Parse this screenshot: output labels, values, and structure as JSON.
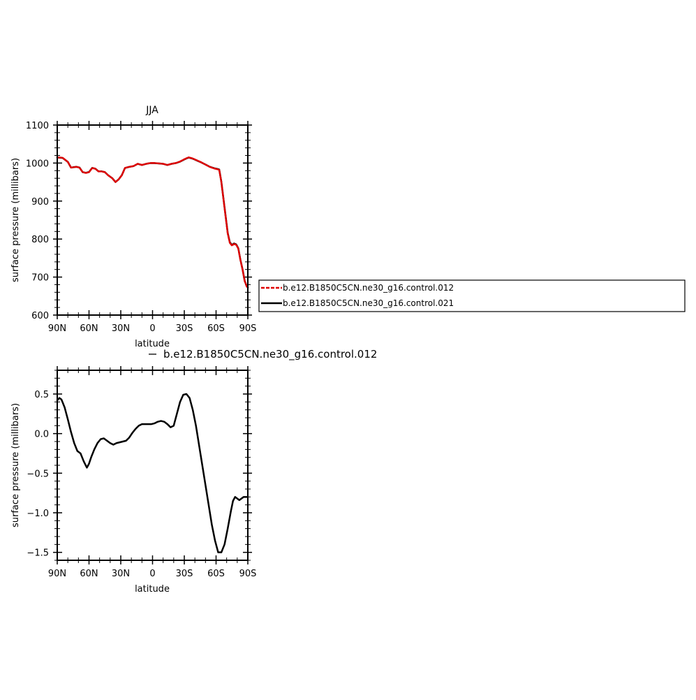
{
  "chart_data": [
    {
      "type": "line",
      "title": "JJA",
      "xlabel": "latitude",
      "ylabel": "surface pressure (millibars)",
      "x_tick_labels": [
        "90N",
        "60N",
        "30N",
        "0",
        "30S",
        "60S",
        "90S"
      ],
      "y_tick_labels": [
        "600",
        "700",
        "800",
        "900",
        "1000",
        "1100"
      ],
      "xlim": [
        90,
        -90
      ],
      "ylim": [
        600,
        1100
      ],
      "series": [
        {
          "name": "b.e12.B1850C5CN.ne30_g16.control.012",
          "color": "#e00000",
          "style": "dashed",
          "x": [
            90,
            85,
            80,
            77,
            72,
            69,
            66,
            63,
            60,
            57,
            54,
            51,
            48,
            45,
            42,
            38,
            35,
            32,
            29,
            26,
            22,
            18,
            14,
            10,
            6,
            2,
            -2,
            -6,
            -10,
            -14,
            -18,
            -22,
            -26,
            -30,
            -34,
            -38,
            -42,
            -46,
            -50,
            -54,
            -58,
            -61,
            -63,
            -65,
            -67,
            -69,
            -71,
            -73,
            -75,
            -77,
            -79,
            -81,
            -83,
            -85,
            -87,
            -89,
            -90
          ],
          "values": [
            1015,
            1014,
            1003,
            988,
            990,
            988,
            976,
            974,
            976,
            987,
            985,
            978,
            978,
            976,
            968,
            960,
            950,
            957,
            968,
            987,
            990,
            992,
            998,
            995,
            998,
            1000,
            1000,
            999,
            998,
            995,
            998,
            1000,
            1004,
            1010,
            1015,
            1012,
            1007,
            1002,
            996,
            990,
            986,
            984,
            982,
            950,
            905,
            860,
            815,
            790,
            783,
            787,
            785,
            775,
            745,
            720,
            690,
            675,
            672
          ]
        },
        {
          "name": "b.e12.B1850C5CN.ne30_g16.control.021",
          "color": "#000000",
          "style": "solid",
          "x": [
            90,
            85,
            80,
            77,
            72,
            69,
            66,
            63,
            60,
            57,
            54,
            51,
            48,
            45,
            42,
            38,
            35,
            32,
            29,
            26,
            22,
            18,
            14,
            10,
            6,
            2,
            -2,
            -6,
            -10,
            -14,
            -18,
            -22,
            -26,
            -30,
            -34,
            -38,
            -42,
            -46,
            -50,
            -54,
            -58,
            -61,
            -63,
            -65,
            -67,
            -69,
            -71,
            -73,
            -75,
            -77,
            -79,
            -81,
            -83,
            -85,
            -87,
            -89,
            -90
          ],
          "values": [
            1014.6,
            1013.6,
            1003.0,
            988.1,
            990.2,
            988.2,
            976.2,
            974.4,
            976.4,
            987.2,
            985.1,
            978.1,
            978.1,
            976.1,
            968.1,
            960.1,
            950.1,
            957.1,
            968.1,
            987.1,
            989.9,
            991.9,
            997.9,
            994.9,
            997.9,
            999.9,
            999.9,
            998.9,
            997.9,
            994.9,
            997.9,
            999.9,
            1003.6,
            1009.5,
            1014.6,
            1011.5,
            1006.6,
            1001.7,
            996.2,
            990.3,
            986.6,
            984.7,
            982.9,
            950.9,
            906.1,
            861.2,
            816.5,
            791.5,
            784.5,
            788.4,
            786.1,
            775.9,
            745.6,
            720.6,
            690.7,
            675.8,
            672.8
          ]
        }
      ],
      "legend": "right"
    },
    {
      "type": "line",
      "title": "b.e12.B1850C5CN.ne30_g16.control.012",
      "xlabel": "latitude",
      "ylabel": "surface pressure (millibars)",
      "x_tick_labels": [
        "90N",
        "60N",
        "30N",
        "0",
        "30S",
        "60S",
        "90S"
      ],
      "y_tick_labels": [
        "0.5",
        "0.0",
        "−0.5",
        "−1.0",
        "−1.5"
      ],
      "xlim": [
        90,
        -90
      ],
      "ylim": [
        -1.6,
        0.8
      ],
      "series": [
        {
          "color": "#000000",
          "style": "solid",
          "x": [
            90,
            88,
            86,
            83,
            80,
            77,
            74,
            71,
            68,
            65,
            62,
            60,
            58,
            55,
            52,
            49,
            46,
            43,
            40,
            37,
            34,
            31,
            28,
            25,
            22,
            19,
            16,
            13,
            10,
            7,
            4,
            1,
            -2,
            -5,
            -8,
            -11,
            -14,
            -17,
            -20,
            -23,
            -26,
            -29,
            -32,
            -35,
            -38,
            -41,
            -44,
            -47,
            -50,
            -53,
            -56,
            -59,
            -62,
            -65,
            -68,
            -71,
            -74,
            -76,
            -78,
            -80,
            -82,
            -84,
            -86,
            -88,
            -90
          ],
          "values": [
            0.42,
            0.45,
            0.43,
            0.33,
            0.18,
            0.02,
            -0.12,
            -0.22,
            -0.25,
            -0.35,
            -0.43,
            -0.38,
            -0.3,
            -0.2,
            -0.12,
            -0.07,
            -0.06,
            -0.09,
            -0.12,
            -0.14,
            -0.12,
            -0.11,
            -0.1,
            -0.09,
            -0.05,
            0.01,
            0.06,
            0.1,
            0.12,
            0.12,
            0.12,
            0.12,
            0.13,
            0.15,
            0.16,
            0.15,
            0.12,
            0.08,
            0.1,
            0.25,
            0.4,
            0.49,
            0.5,
            0.45,
            0.3,
            0.1,
            -0.15,
            -0.4,
            -0.65,
            -0.9,
            -1.15,
            -1.35,
            -1.5,
            -1.5,
            -1.4,
            -1.2,
            -0.98,
            -0.85,
            -0.8,
            -0.82,
            -0.84,
            -0.82,
            -0.8,
            -0.8,
            -0.8
          ]
        }
      ]
    }
  ]
}
